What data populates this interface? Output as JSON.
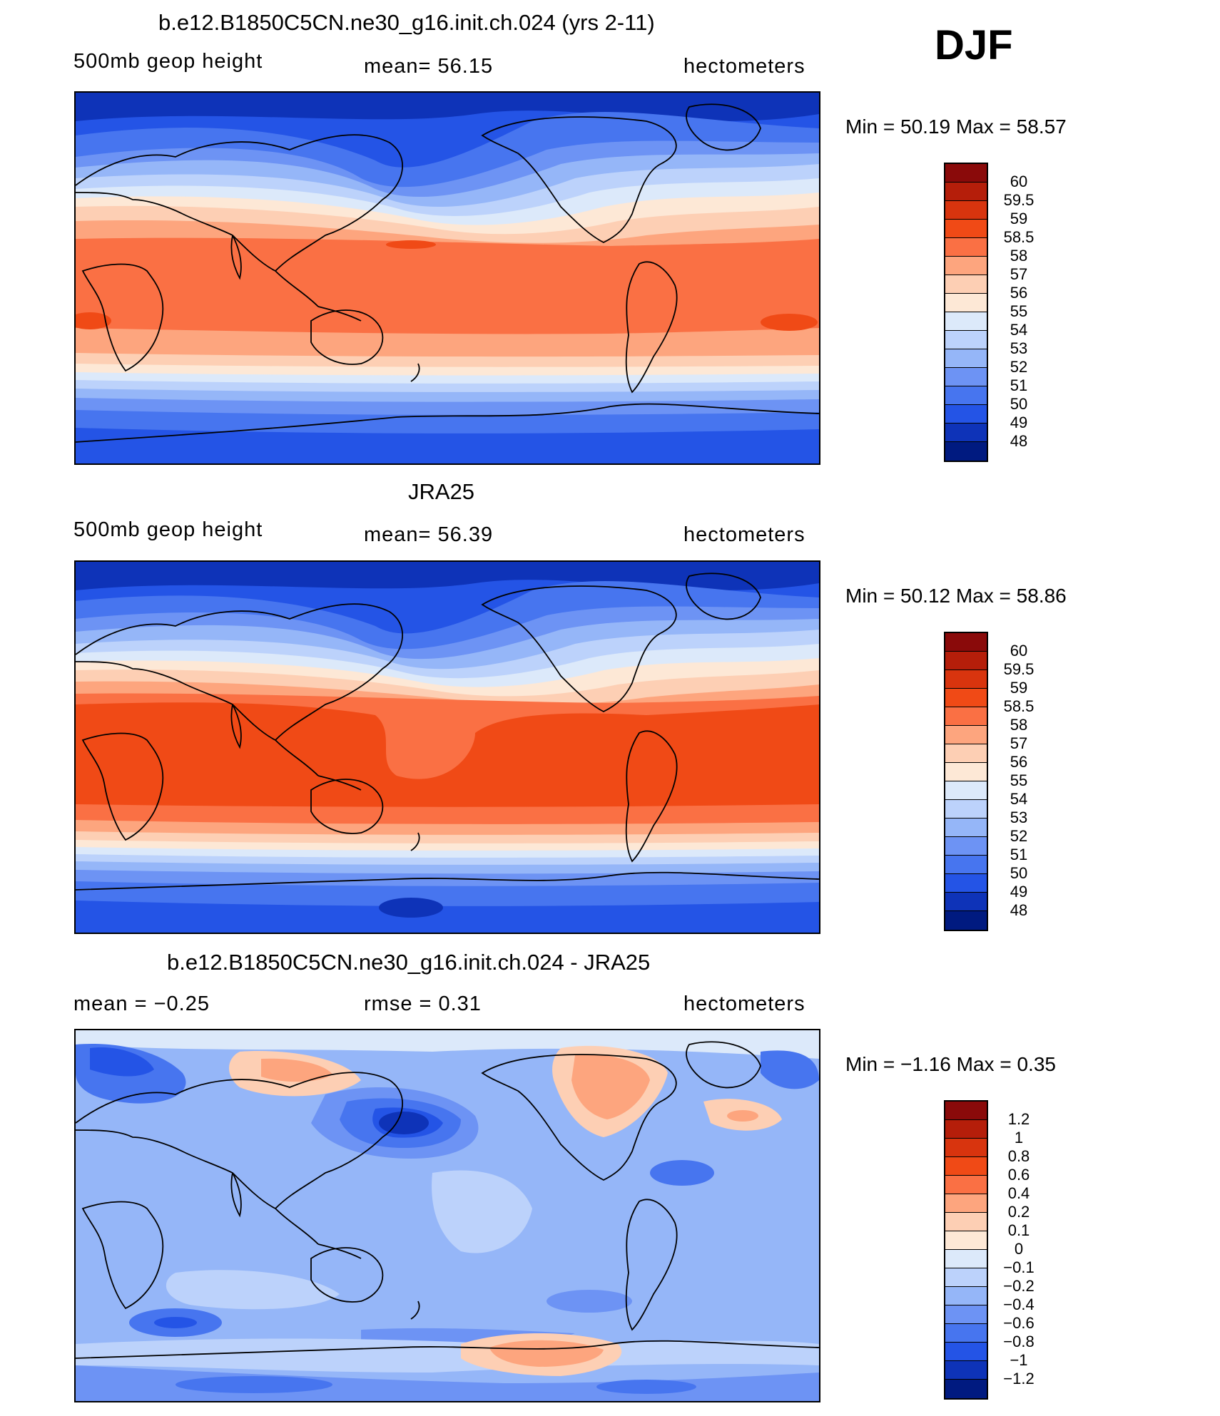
{
  "season": "DJF",
  "panels": [
    {
      "title": "b.e12.B1850C5CN.ne30_g16.init.ch.024 (yrs 2-11)",
      "left_label": "500mb geop height",
      "center_label": "mean=   56.15",
      "right_label": "hectometers",
      "minmax": "Min =   50.19  Max =   58.57",
      "levels": [
        "60",
        "59.5",
        "59",
        "58.5",
        "58",
        "57",
        "56",
        "55",
        "54",
        "53",
        "52",
        "51",
        "50",
        "49",
        "48"
      ],
      "colors": [
        "#8a0a0a",
        "#b51e0a",
        "#d8340e",
        "#f04a16",
        "#fa7044",
        "#fda57e",
        "#fdcfb4",
        "#fde8d6",
        "#dce9fa",
        "#bcd2fb",
        "#95b6f8",
        "#6d93f4",
        "#4775ef",
        "#2454e6",
        "#0e33b8",
        "#001a80"
      ]
    },
    {
      "title": "JRA25",
      "left_label": "500mb geop height",
      "center_label": "mean=   56.39",
      "right_label": "hectometers",
      "minmax": "Min =   50.12  Max =   58.86",
      "levels": [
        "60",
        "59.5",
        "59",
        "58.5",
        "58",
        "57",
        "56",
        "55",
        "54",
        "53",
        "52",
        "51",
        "50",
        "49",
        "48"
      ],
      "colors": [
        "#8a0a0a",
        "#b51e0a",
        "#d8340e",
        "#f04a16",
        "#fa7044",
        "#fda57e",
        "#fdcfb4",
        "#fde8d6",
        "#dce9fa",
        "#bcd2fb",
        "#95b6f8",
        "#6d93f4",
        "#4775ef",
        "#2454e6",
        "#0e33b8",
        "#001a80"
      ]
    },
    {
      "title": "b.e12.B1850C5CN.ne30_g16.init.ch.024 - JRA25",
      "left_label": "mean =   −0.25",
      "center_label": "rmse =     0.31",
      "right_label": "hectometers",
      "minmax": "Min =   −1.16  Max =     0.35",
      "levels": [
        "1.2",
        "1",
        "0.8",
        "0.6",
        "0.4",
        "0.2",
        "0.1",
        "0",
        "−0.1",
        "−0.2",
        "−0.4",
        "−0.6",
        "−0.8",
        "−1",
        "−1.2"
      ],
      "colors": [
        "#8a0a0a",
        "#b51e0a",
        "#d8340e",
        "#f04a16",
        "#fa7044",
        "#fda57e",
        "#fdcfb4",
        "#fde8d6",
        "#dce9fa",
        "#bcd2fb",
        "#95b6f8",
        "#6d93f4",
        "#4775ef",
        "#2454e6",
        "#0e33b8",
        "#001a80"
      ]
    }
  ]
}
